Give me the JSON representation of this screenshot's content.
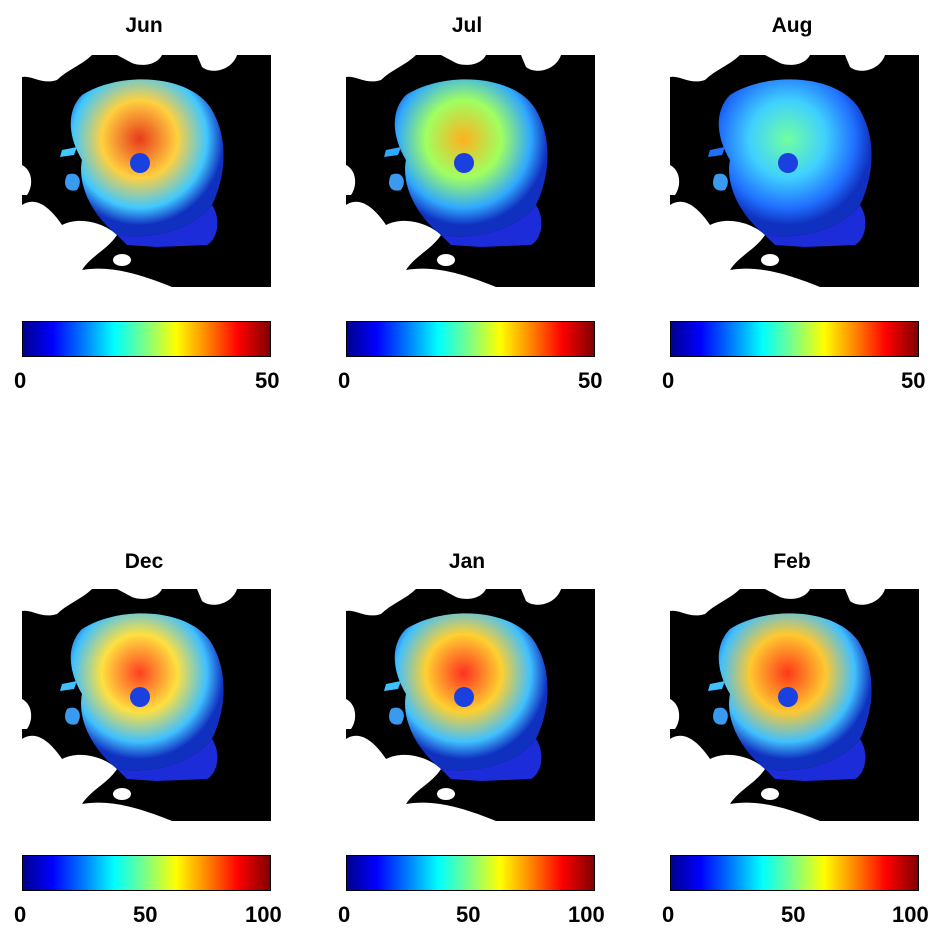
{
  "figure": {
    "panels": [
      {
        "title": "Jun",
        "ticks": [
          "0",
          "50"
        ],
        "cmap": "jet",
        "bg_color": "#000000",
        "land_color": "#ffffff"
      },
      {
        "title": "Jul",
        "ticks": [
          "0",
          "50"
        ],
        "cmap": "jet",
        "bg_color": "#000000",
        "land_color": "#ffffff"
      },
      {
        "title": "Aug",
        "ticks": [
          "0",
          "50"
        ],
        "cmap": "jet",
        "bg_color": "#000000",
        "land_color": "#ffffff"
      },
      {
        "title": "Dec",
        "ticks": [
          "0",
          "50",
          "100"
        ],
        "cmap": "jet",
        "bg_color": "#000000",
        "land_color": "#ffffff"
      },
      {
        "title": "Jan",
        "ticks": [
          "0",
          "50",
          "100"
        ],
        "cmap": "jet",
        "bg_color": "#000000",
        "land_color": "#ffffff"
      },
      {
        "title": "Feb",
        "ticks": [
          "0",
          "50",
          "100"
        ],
        "cmap": "jet",
        "bg_color": "#000000",
        "land_color": "#ffffff"
      }
    ]
  }
}
